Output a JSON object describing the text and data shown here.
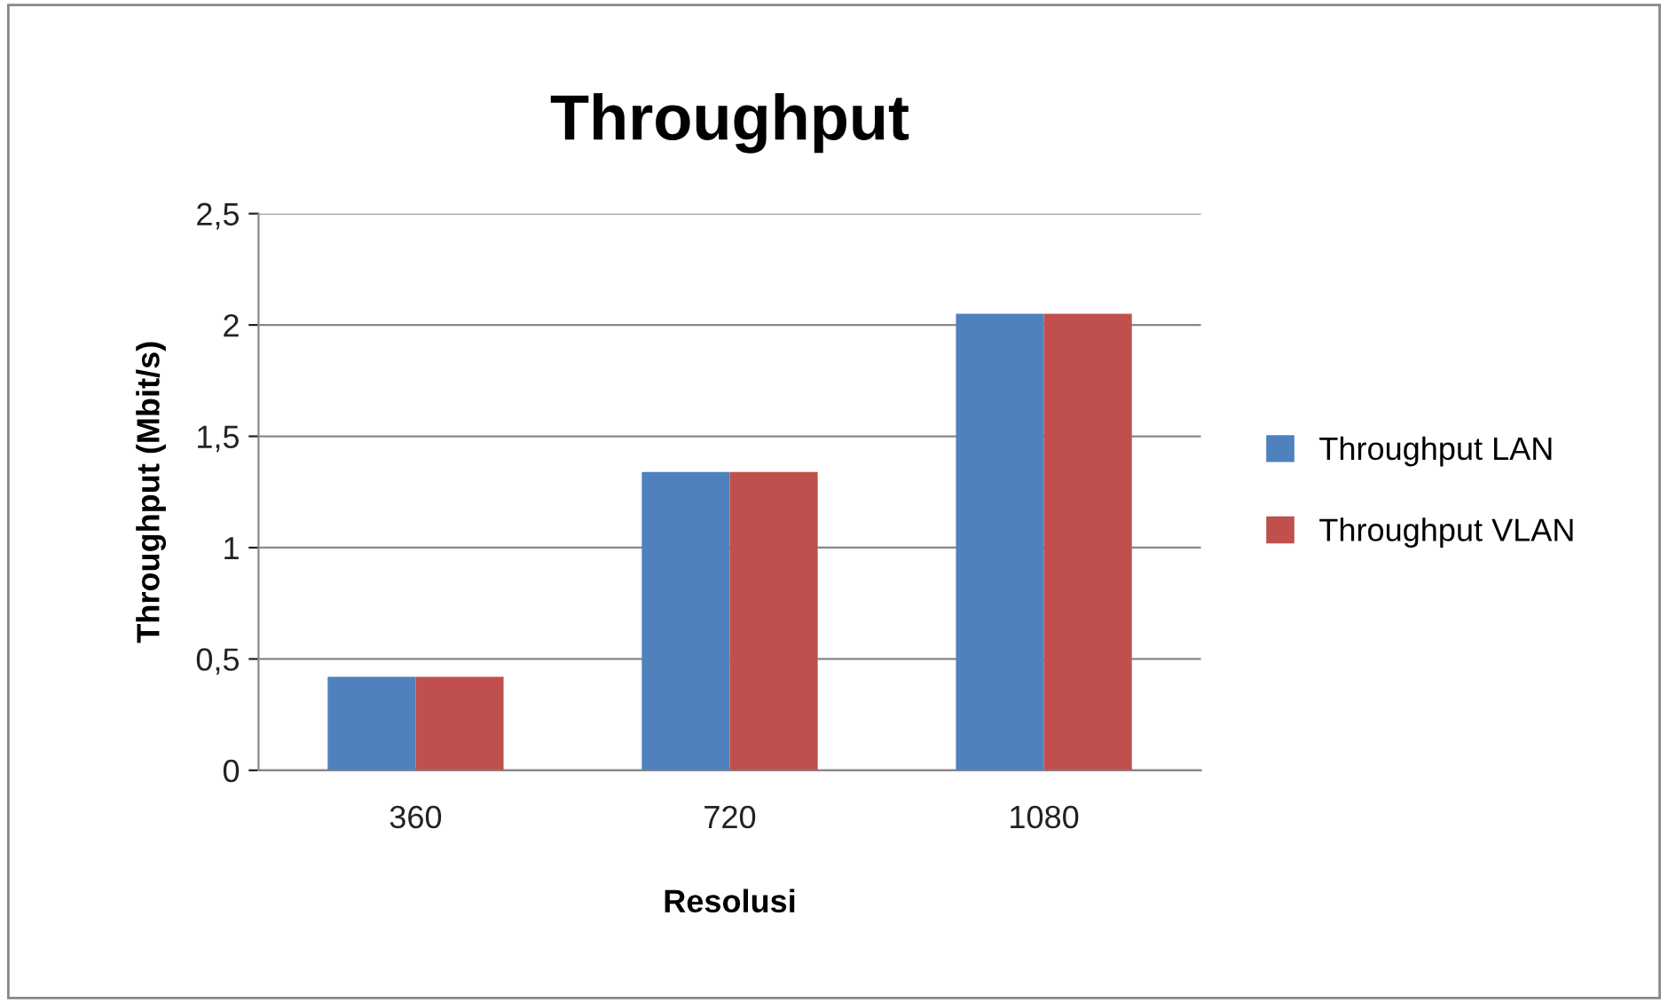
{
  "chart_data": {
    "type": "bar",
    "title": "Throughput",
    "xlabel": "Resolusi",
    "ylabel": "Throughput (Mbit/s)",
    "categories": [
      "360",
      "720",
      "1080"
    ],
    "series": [
      {
        "name": "Throughput LAN",
        "color": "#4f81bd",
        "values": [
          0.42,
          1.34,
          2.05
        ]
      },
      {
        "name": "Throughput VLAN",
        "color": "#c0504d",
        "values": [
          0.42,
          1.34,
          2.05
        ]
      }
    ],
    "ylim": [
      0,
      2.5
    ],
    "yticks": [
      0,
      {
        "value": 0.5,
        "label": "0,5"
      },
      1,
      {
        "value": 1.5,
        "label": "1,5"
      },
      2,
      {
        "value": 2.5,
        "label": "2,5"
      }
    ],
    "grid": "y",
    "legend": "right"
  }
}
